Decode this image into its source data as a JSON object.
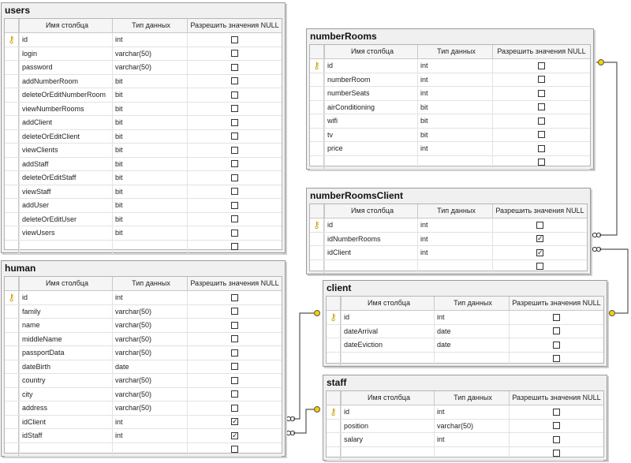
{
  "headers": {
    "name": "Имя столбца",
    "type": "Тип данных",
    "nullable": "Разрешить значения NULL"
  },
  "colors": {
    "key": "#c9a200",
    "line": "#555555"
  },
  "tables": {
    "users": {
      "title": "users",
      "rows": [
        {
          "name": "id",
          "type": "int",
          "key": true,
          "null": false
        },
        {
          "name": "login",
          "type": "varchar(50)",
          "null": false
        },
        {
          "name": "password",
          "type": "varchar(50)",
          "null": false
        },
        {
          "name": "addNumberRoom",
          "type": "bit",
          "null": false
        },
        {
          "name": "deleteOrEditNumberRoom",
          "type": "bit",
          "null": false
        },
        {
          "name": "viewNumberRooms",
          "type": "bit",
          "null": false
        },
        {
          "name": "addClient",
          "type": "bit",
          "null": false
        },
        {
          "name": "deleteOrEditClient",
          "type": "bit",
          "null": false
        },
        {
          "name": "viewClients",
          "type": "bit",
          "null": false
        },
        {
          "name": "addStaff",
          "type": "bit",
          "null": false
        },
        {
          "name": "deleteOrEditStaff",
          "type": "bit",
          "null": false
        },
        {
          "name": "viewStaff",
          "type": "bit",
          "null": false
        },
        {
          "name": "addUser",
          "type": "bit",
          "null": false
        },
        {
          "name": "deleteOrEditUser",
          "type": "bit",
          "null": false
        },
        {
          "name": "viewUsers",
          "type": "bit",
          "null": false
        },
        {
          "name": "",
          "type": "",
          "null": false
        }
      ]
    },
    "human": {
      "title": "human",
      "rows": [
        {
          "name": "id",
          "type": "int",
          "key": true,
          "null": false
        },
        {
          "name": "family",
          "type": "varchar(50)",
          "null": false
        },
        {
          "name": "name",
          "type": "varchar(50)",
          "null": false
        },
        {
          "name": "middleName",
          "type": "varchar(50)",
          "null": false
        },
        {
          "name": "passportData",
          "type": "varchar(50)",
          "null": false
        },
        {
          "name": "dateBirth",
          "type": "date",
          "null": false
        },
        {
          "name": "country",
          "type": "varchar(50)",
          "null": false
        },
        {
          "name": "city",
          "type": "varchar(50)",
          "null": false
        },
        {
          "name": "address",
          "type": "varchar(50)",
          "null": false
        },
        {
          "name": "idClient",
          "type": "int",
          "null": true
        },
        {
          "name": "idStaff",
          "type": "int",
          "null": true
        },
        {
          "name": "",
          "type": "",
          "null": false
        }
      ]
    },
    "numberRooms": {
      "title": "numberRooms",
      "rows": [
        {
          "name": "id",
          "type": "int",
          "key": true,
          "null": false
        },
        {
          "name": "numberRoom",
          "type": "int",
          "null": false
        },
        {
          "name": "numberSeats",
          "type": "int",
          "null": false
        },
        {
          "name": "airConditioning",
          "type": "bit",
          "null": false
        },
        {
          "name": "wifi",
          "type": "bit",
          "null": false
        },
        {
          "name": "tv",
          "type": "bit",
          "null": false
        },
        {
          "name": "price",
          "type": "int",
          "null": false
        },
        {
          "name": "",
          "type": "",
          "null": false
        }
      ]
    },
    "numberRoomsClient": {
      "title": "numberRoomsClient",
      "rows": [
        {
          "name": "id",
          "type": "int",
          "key": true,
          "null": false
        },
        {
          "name": "idNumberRooms",
          "type": "int",
          "null": true
        },
        {
          "name": "idClient",
          "type": "int",
          "null": true
        },
        {
          "name": "",
          "type": "",
          "null": false
        }
      ]
    },
    "client": {
      "title": "client",
      "rows": [
        {
          "name": "id",
          "type": "int",
          "key": true,
          "null": false
        },
        {
          "name": "dateArrival",
          "type": "date",
          "null": false
        },
        {
          "name": "dateEviction",
          "type": "date",
          "null": false
        },
        {
          "name": "",
          "type": "",
          "null": false
        }
      ]
    },
    "staff": {
      "title": "staff",
      "rows": [
        {
          "name": "id",
          "type": "int",
          "key": true,
          "null": false
        },
        {
          "name": "position",
          "type": "varchar(50)",
          "null": false
        },
        {
          "name": "salary",
          "type": "int",
          "null": false
        },
        {
          "name": "",
          "type": "",
          "null": false
        }
      ]
    }
  }
}
